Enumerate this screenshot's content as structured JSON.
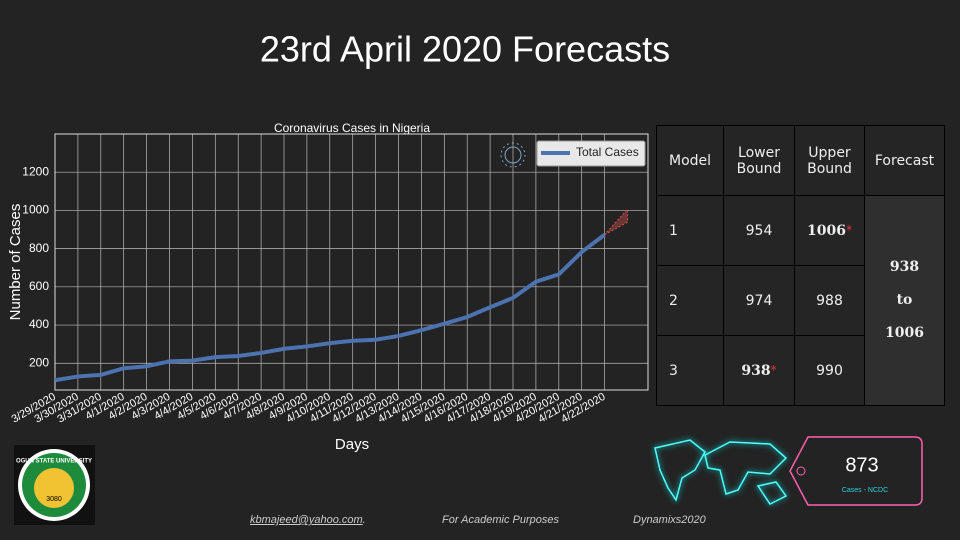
{
  "title": "23rd April 2020 Forecasts",
  "chart_data": {
    "type": "line",
    "title": "Coronavirus Cases in Nigeria",
    "xlabel": "Days",
    "ylabel": "Number of Cases",
    "categories": [
      "3/29/2020",
      "3/30/2020",
      "3/31/2020",
      "4/1/2020",
      "4/2/2020",
      "4/3/2020",
      "4/4/2020",
      "4/5/2020",
      "4/6/2020",
      "4/7/2020",
      "4/8/2020",
      "4/9/2020",
      "4/10/2020",
      "4/11/2020",
      "4/12/2020",
      "4/13/2020",
      "4/14/2020",
      "4/15/2020",
      "4/16/2020",
      "4/17/2020",
      "4/18/2020",
      "4/19/2020",
      "4/20/2020",
      "4/21/2020",
      "4/22/2020"
    ],
    "series": [
      {
        "name": "Total Cases",
        "color": "#4c72b0",
        "values": [
          111,
          131,
          139,
          174,
          184,
          210,
          214,
          232,
          238,
          254,
          276,
          288,
          305,
          318,
          323,
          343,
          373,
          407,
          442,
          493,
          542,
          627,
          665,
          782,
          873
        ]
      }
    ],
    "forecast_color": "#d9534f",
    "ylim": [
      60,
      1400
    ],
    "yticks": [
      200,
      400,
      600,
      800,
      1000,
      1200
    ],
    "grid": true,
    "legend": "upper right"
  },
  "table": {
    "headers": [
      "Model",
      "Lower Bound",
      "Upper Bound",
      "Forecast"
    ],
    "star": "*",
    "rows": [
      {
        "model": 1,
        "lower": 954,
        "upper": 1006,
        "emphasis": "upper"
      },
      {
        "model": 2,
        "lower": 974,
        "upper": 988,
        "emphasis": null
      },
      {
        "model": 3,
        "lower": 938,
        "upper": 990,
        "emphasis": "lower"
      }
    ],
    "forecast": {
      "from": 938,
      "word": "to",
      "to": 1006
    }
  },
  "badge": {
    "value": 873,
    "label": "Cases - NCDC"
  },
  "logo": {
    "name": "OGUN STATE UNIVERSITY",
    "number": "3080"
  },
  "footer": {
    "email": "kbmajeed@yahoo.com",
    "email_suffix": ".",
    "note": "For Academic Purposes",
    "brand": "Dynamixs2020"
  }
}
